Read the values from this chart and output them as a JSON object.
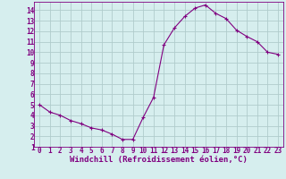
{
  "x": [
    0,
    1,
    2,
    3,
    4,
    5,
    6,
    7,
    8,
    9,
    10,
    11,
    12,
    13,
    14,
    15,
    16,
    17,
    18,
    19,
    20,
    21,
    22,
    23
  ],
  "y": [
    5.0,
    4.3,
    4.0,
    3.5,
    3.2,
    2.8,
    2.6,
    2.2,
    1.7,
    1.7,
    3.8,
    5.7,
    10.7,
    12.3,
    13.4,
    14.2,
    14.5,
    13.7,
    13.2,
    12.1,
    11.5,
    11.0,
    10.0,
    9.8
  ],
  "line_color": "#800080",
  "marker": "+",
  "marker_color": "#800080",
  "bg_color": "#d6eeee",
  "grid_color": "#b0cccc",
  "xlabel": "Windchill (Refroidissement éolien,°C)",
  "xlim": [
    -0.5,
    23.5
  ],
  "ylim": [
    1,
    14.8
  ],
  "yticks": [
    1,
    2,
    3,
    4,
    5,
    6,
    7,
    8,
    9,
    10,
    11,
    12,
    13,
    14
  ],
  "xticks": [
    0,
    1,
    2,
    3,
    4,
    5,
    6,
    7,
    8,
    9,
    10,
    11,
    12,
    13,
    14,
    15,
    16,
    17,
    18,
    19,
    20,
    21,
    22,
    23
  ],
  "tick_label_fontsize": 5.5,
  "xlabel_fontsize": 6.5,
  "line_width": 0.8,
  "marker_size": 3
}
